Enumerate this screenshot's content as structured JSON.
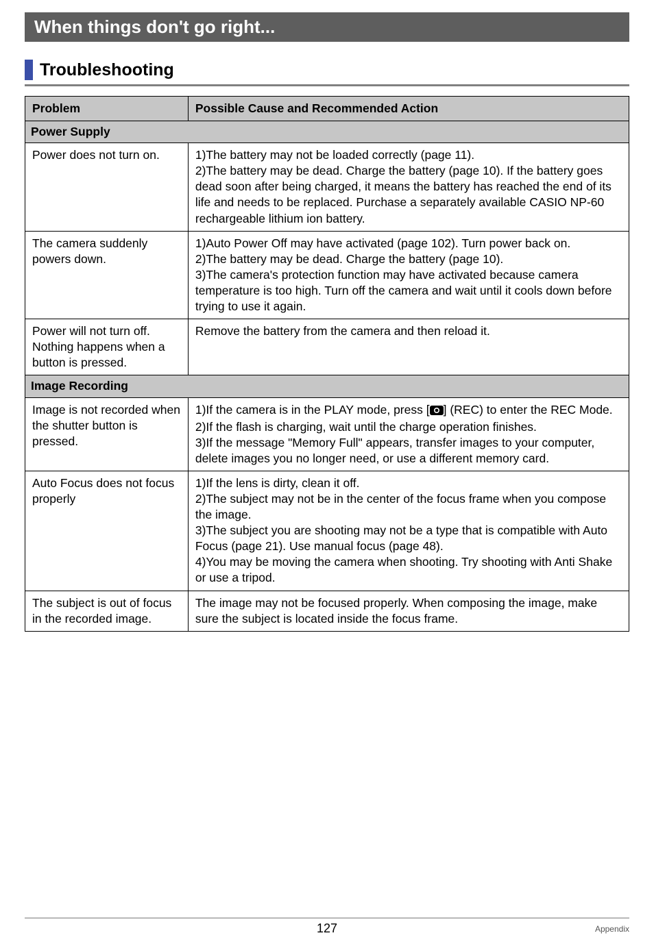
{
  "banner": {
    "title": "When things don't go right..."
  },
  "subheader": {
    "title": "Troubleshooting"
  },
  "table": {
    "headers": {
      "problem": "Problem",
      "action": "Possible Cause and Recommended Action"
    },
    "sections": [
      {
        "title": "Power Supply",
        "rows": [
          {
            "problem": "Power does not turn on.",
            "action": "1)The battery may not be loaded correctly (page 11).\n2)The battery may be dead. Charge the battery (page 10). If the battery goes dead soon after being charged, it means the battery has reached the end of its life and needs to be replaced. Purchase a separately available CASIO NP-60 rechargeable lithium ion battery."
          },
          {
            "problem": "The camera suddenly powers down.",
            "action": "1)Auto Power Off may have activated (page 102). Turn power back on.\n2)The battery may be dead. Charge the battery (page 10).\n3)The camera's protection function may have activated because camera temperature is too high. Turn off the camera and wait until it cools down before trying to use it again."
          },
          {
            "problem": "Power will not turn off. Nothing happens when a button is pressed.",
            "action": "Remove the battery from the camera and then reload it."
          }
        ]
      },
      {
        "title": "Image Recording",
        "rows": [
          {
            "problem": "Image is not recorded when the shutter button is pressed.",
            "action_pre": "1)If the camera is in the PLAY mode, press [",
            "action_post": "] (REC) to enter the REC Mode.\n2)If the flash is charging, wait until the charge operation finishes.\n3)If the message \"Memory Full\" appears, transfer images to your computer, delete images you no longer need, or use a different memory card."
          },
          {
            "problem": "Auto Focus does not focus properly",
            "action": "1)If the lens is dirty, clean it off.\n2)The subject may not be in the center of the focus frame when you compose the image.\n3)The subject you are shooting may not be a type that is compatible with Auto Focus (page 21). Use manual focus (page 48).\n4)You may be moving the camera when shooting. Try shooting with Anti Shake or use a tripod."
          },
          {
            "problem": "The subject is out of focus in the recorded image.",
            "action": "The image may not be focused properly. When composing the image, make sure the subject is located inside the focus frame."
          }
        ]
      }
    ]
  },
  "footer": {
    "page": "127",
    "section": "Appendix"
  },
  "colors": {
    "banner_bg": "#5e5e5e",
    "banner_text": "#ffffff",
    "marker": "#3a4fa8",
    "section_bg": "#c6c6c6",
    "border": "#000000",
    "footer_line": "#b8b8b8"
  }
}
